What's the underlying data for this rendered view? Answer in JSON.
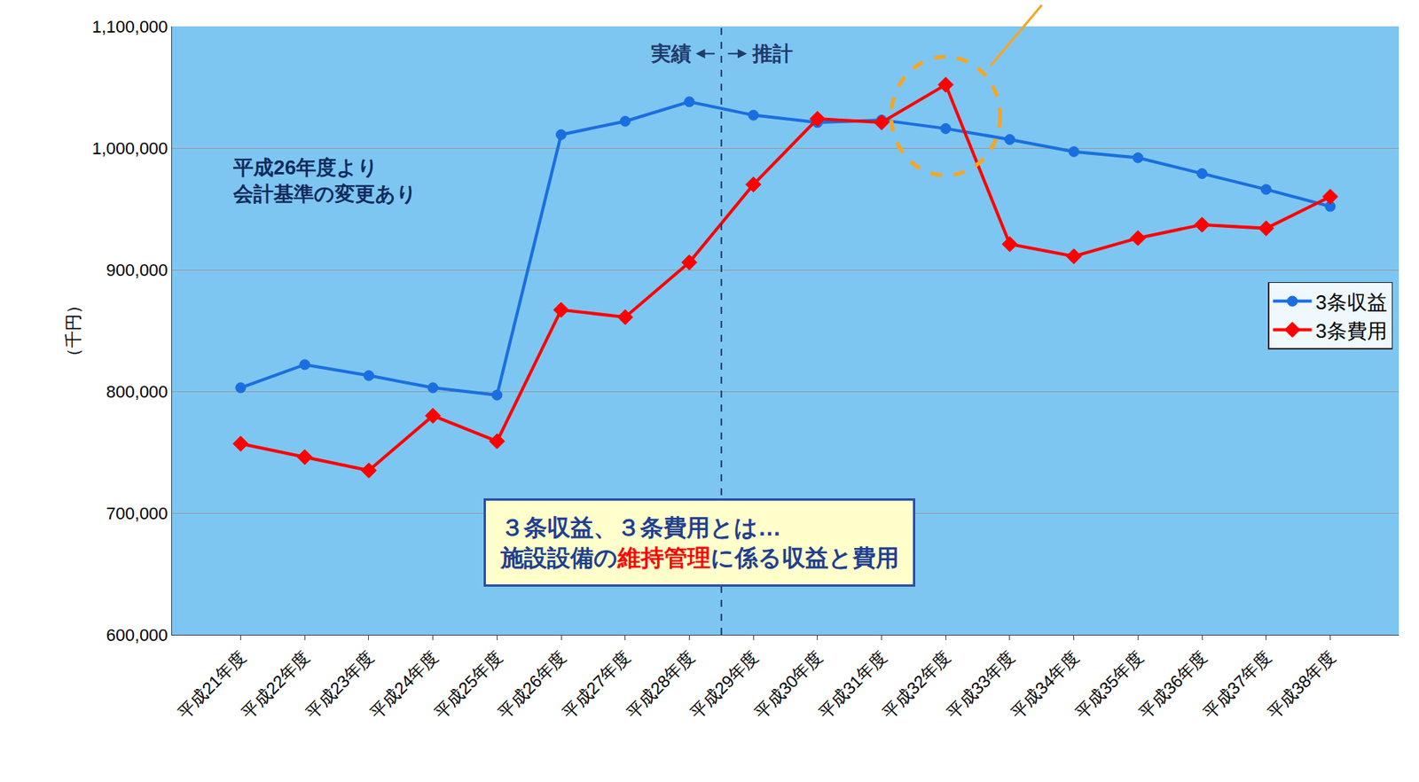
{
  "chart_data": {
    "type": "line",
    "categories": [
      "平成21年度",
      "平成22年度",
      "平成23年度",
      "平成24年度",
      "平成25年度",
      "平成26年度",
      "平成27年度",
      "平成28年度",
      "平成29年度",
      "平成30年度",
      "平成31年度",
      "平成32年度",
      "平成33年度",
      "平成34年度",
      "平成35年度",
      "平成36年度",
      "平成37年度",
      "平成38年度"
    ],
    "series": [
      {
        "name": "3条収益",
        "color": "#1a6fe0",
        "marker": "circle",
        "values": [
          803000,
          822000,
          813000,
          803000,
          797000,
          1011000,
          1022000,
          1038000,
          1027000,
          1021000,
          1023000,
          1016000,
          1007000,
          997000,
          992000,
          979000,
          966000,
          952000
        ]
      },
      {
        "name": "3条費用",
        "color": "#ff0000",
        "marker": "diamond",
        "values": [
          757000,
          746000,
          735000,
          780000,
          759000,
          867000,
          861000,
          906000,
          970000,
          1024000,
          1021000,
          1052000,
          921000,
          911000,
          926000,
          937000,
          934000,
          960000
        ]
      }
    ],
    "y_label": "（千円）",
    "ylim": [
      600000,
      1100000
    ],
    "yticks": [
      {
        "value": 600000,
        "label": "600,000"
      },
      {
        "value": 700000,
        "label": "700,000"
      },
      {
        "value": 800000,
        "label": "800,000"
      },
      {
        "value": 900000,
        "label": "900,000"
      },
      {
        "value": 1000000,
        "label": "1,000,000"
      },
      {
        "value": 1100000,
        "label": "1,100,000"
      }
    ],
    "grid": true,
    "legend": "right",
    "annotations": {
      "divider": {
        "between": [
          "平成28年度",
          "平成29年度"
        ],
        "left_label": "実績",
        "right_label": "推計"
      },
      "highlight_category": "平成32年度",
      "accounting_note": [
        "平成26年度より",
        "会計基準の変更あり"
      ],
      "definition_note": {
        "title": "３条収益、３条費用とは…",
        "body": [
          {
            "text": "施設設備の"
          },
          {
            "text": "維持管理",
            "color": "#ff0000"
          },
          {
            "text": "に係る収益と費用"
          }
        ]
      }
    }
  }
}
